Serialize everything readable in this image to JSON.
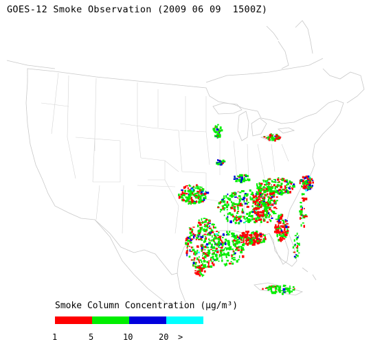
{
  "title": "GOES-12 Smoke Observation (2009 06 09  1500Z)",
  "legend": {
    "title": "Smoke Column Concentration (µg/m³)",
    "colors": [
      "#ff0000",
      "#00ee00",
      "#0000dd",
      "#00ffff"
    ],
    "ticks": [
      "1",
      "5",
      "10",
      "20",
      ">"
    ]
  },
  "map": {
    "region": "United States",
    "line_color": "#c8c8c8",
    "smoke_colors": {
      "low": "#ff0000",
      "mid": "#00ee00",
      "high": "#0000dd",
      "very_high": "#00ffff"
    }
  }
}
